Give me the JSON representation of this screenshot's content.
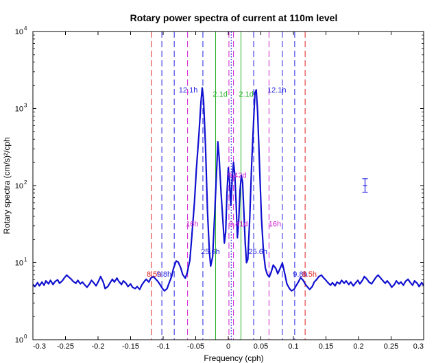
{
  "chart_data": {
    "type": "line",
    "title": "Rotary power spectra of current at 110m level",
    "xlabel": "Frequency (cph)",
    "ylabel": "Rotary spectra (cm/s)²/cph",
    "xlim": [
      -0.3,
      0.3
    ],
    "ylim": [
      1,
      10000
    ],
    "y_scale": "log",
    "grid": false,
    "x_ticks": [
      -0.3,
      -0.25,
      -0.2,
      -0.15,
      -0.1,
      -0.05,
      0,
      0.05,
      0.1,
      0.15,
      0.2,
      0.25,
      0.3
    ],
    "x_tick_labels": [
      "-0.3",
      "-0.25",
      "-0.2",
      "-0.15",
      "-0.1",
      "-0.05",
      "0",
      "0.05",
      "0.1",
      "0.15",
      "0.2",
      "0.25",
      "0.3"
    ],
    "y_ticks": [
      1,
      10,
      100,
      1000,
      10000
    ],
    "y_tick_labels": [
      {
        "base": "10",
        "exp": "0"
      },
      {
        "base": "10",
        "exp": "1"
      },
      {
        "base": "10",
        "exp": "2"
      },
      {
        "base": "10",
        "exp": "3"
      },
      {
        "base": "10",
        "exp": "4"
      }
    ],
    "series": [
      {
        "color": "#1010d0",
        "points": [
          [
            -0.3,
            5.2
          ],
          [
            -0.297,
            4.9
          ],
          [
            -0.293,
            5.5
          ],
          [
            -0.29,
            5.0
          ],
          [
            -0.286,
            5.6
          ],
          [
            -0.283,
            5.1
          ],
          [
            -0.28,
            5.8
          ],
          [
            -0.276,
            5.3
          ],
          [
            -0.273,
            5.9
          ],
          [
            -0.269,
            5.2
          ],
          [
            -0.266,
            5.7
          ],
          [
            -0.262,
            6.0
          ],
          [
            -0.259,
            5.4
          ],
          [
            -0.255,
            5.8
          ],
          [
            -0.252,
            6.3
          ],
          [
            -0.248,
            6.9
          ],
          [
            -0.245,
            6.5
          ],
          [
            -0.241,
            6.1
          ],
          [
            -0.238,
            5.7
          ],
          [
            -0.234,
            5.4
          ],
          [
            -0.231,
            5.9
          ],
          [
            -0.227,
            5.3
          ],
          [
            -0.224,
            5.6
          ],
          [
            -0.22,
            5.1
          ],
          [
            -0.217,
            4.8
          ],
          [
            -0.213,
            5.3
          ],
          [
            -0.21,
            5.9
          ],
          [
            -0.206,
            5.4
          ],
          [
            -0.203,
            5.0
          ],
          [
            -0.199,
            5.8
          ],
          [
            -0.196,
            6.6
          ],
          [
            -0.192,
            5.6
          ],
          [
            -0.189,
            4.6
          ],
          [
            -0.185,
            4.9
          ],
          [
            -0.182,
            5.4
          ],
          [
            -0.178,
            6.1
          ],
          [
            -0.175,
            5.6
          ],
          [
            -0.171,
            6.3
          ],
          [
            -0.168,
            5.7
          ],
          [
            -0.164,
            5.2
          ],
          [
            -0.161,
            5.8
          ],
          [
            -0.157,
            5.4
          ],
          [
            -0.154,
            4.9
          ],
          [
            -0.15,
            5.3
          ],
          [
            -0.147,
            4.8
          ],
          [
            -0.143,
            4.6
          ],
          [
            -0.14,
            4.9
          ],
          [
            -0.136,
            4.5
          ],
          [
            -0.133,
            5.1
          ],
          [
            -0.129,
            5.7
          ],
          [
            -0.126,
            6.1
          ],
          [
            -0.122,
            5.6
          ],
          [
            -0.119,
            6.3
          ],
          [
            -0.115,
            6.6
          ],
          [
            -0.112,
            6.2
          ],
          [
            -0.108,
            5.7
          ],
          [
            -0.105,
            5.2
          ],
          [
            -0.101,
            4.6
          ],
          [
            -0.098,
            4.3
          ],
          [
            -0.094,
            4.6
          ],
          [
            -0.091,
            5.4
          ],
          [
            -0.087,
            6.6
          ],
          [
            -0.084,
            8.5
          ],
          [
            -0.08,
            10.5
          ],
          [
            -0.077,
            10.2
          ],
          [
            -0.073,
            8.6
          ],
          [
            -0.07,
            7.0
          ],
          [
            -0.066,
            6.3
          ],
          [
            -0.063,
            7.4
          ],
          [
            -0.059,
            10.8
          ],
          [
            -0.056,
            22.0
          ],
          [
            -0.052,
            60.0
          ],
          [
            -0.049,
            160.0
          ],
          [
            -0.045,
            480.0
          ],
          [
            -0.042,
            1200.0
          ],
          [
            -0.04,
            1850.0
          ],
          [
            -0.038,
            1300.0
          ],
          [
            -0.035,
            320.0
          ],
          [
            -0.032,
            48.0
          ],
          [
            -0.029,
            14.0
          ],
          [
            -0.027,
            9.0
          ],
          [
            -0.024,
            12.0
          ],
          [
            -0.021,
            40.0
          ],
          [
            -0.018,
            150.0
          ],
          [
            -0.016,
            370.0
          ],
          [
            -0.014,
            230.0
          ],
          [
            -0.011,
            80.0
          ],
          [
            -0.008,
            32.0
          ],
          [
            -0.006,
            18.0
          ],
          [
            -0.004,
            25.0
          ],
          [
            -0.002,
            80.0
          ],
          [
            0.0,
            170.0
          ],
          [
            0.002,
            110.0
          ],
          [
            0.004,
            55.0
          ],
          [
            0.006,
            120.0
          ],
          [
            0.008,
            200.0
          ],
          [
            0.01,
            140.0
          ],
          [
            0.012,
            60.0
          ],
          [
            0.014,
            21.0
          ],
          [
            0.016,
            35.0
          ],
          [
            0.018,
            85.0
          ],
          [
            0.02,
            135.0
          ],
          [
            0.022,
            110.0
          ],
          [
            0.024,
            45.0
          ],
          [
            0.026,
            18.0
          ],
          [
            0.028,
            10.0
          ],
          [
            0.03,
            11.0
          ],
          [
            0.033,
            38.0
          ],
          [
            0.036,
            200.0
          ],
          [
            0.039,
            700.0
          ],
          [
            0.041,
            1600.0
          ],
          [
            0.043,
            1750.0
          ],
          [
            0.045,
            900.0
          ],
          [
            0.048,
            180.0
          ],
          [
            0.051,
            38.0
          ],
          [
            0.054,
            14.0
          ],
          [
            0.057,
            8.5
          ],
          [
            0.06,
            7.0
          ],
          [
            0.063,
            6.5
          ],
          [
            0.066,
            7.6
          ],
          [
            0.069,
            9.3
          ],
          [
            0.073,
            8.4
          ],
          [
            0.076,
            7.2
          ],
          [
            0.08,
            8.6
          ],
          [
            0.083,
            9.9
          ],
          [
            0.087,
            7.0
          ],
          [
            0.09,
            5.3
          ],
          [
            0.094,
            4.6
          ],
          [
            0.097,
            4.3
          ],
          [
            0.101,
            4.5
          ],
          [
            0.104,
            5.0
          ],
          [
            0.108,
            5.7
          ],
          [
            0.111,
            6.4
          ],
          [
            0.115,
            5.9
          ],
          [
            0.118,
            5.3
          ],
          [
            0.122,
            4.8
          ],
          [
            0.125,
            4.5
          ],
          [
            0.129,
            4.9
          ],
          [
            0.132,
            5.6
          ],
          [
            0.136,
            6.1
          ],
          [
            0.139,
            6.6
          ],
          [
            0.143,
            6.9
          ],
          [
            0.146,
            6.4
          ],
          [
            0.15,
            5.9
          ],
          [
            0.153,
            5.5
          ],
          [
            0.157,
            5.1
          ],
          [
            0.16,
            5.5
          ],
          [
            0.164,
            5.0
          ],
          [
            0.167,
            5.6
          ],
          [
            0.171,
            5.3
          ],
          [
            0.174,
            5.9
          ],
          [
            0.178,
            5.4
          ],
          [
            0.181,
            5.8
          ],
          [
            0.185,
            5.2
          ],
          [
            0.188,
            5.6
          ],
          [
            0.192,
            5.0
          ],
          [
            0.195,
            5.4
          ],
          [
            0.199,
            5.9
          ],
          [
            0.202,
            5.3
          ],
          [
            0.206,
            5.9
          ],
          [
            0.209,
            6.6
          ],
          [
            0.213,
            6.1
          ],
          [
            0.216,
            5.6
          ],
          [
            0.22,
            5.3
          ],
          [
            0.223,
            5.8
          ],
          [
            0.227,
            6.5
          ],
          [
            0.23,
            6.9
          ],
          [
            0.234,
            6.3
          ],
          [
            0.237,
            5.9
          ],
          [
            0.241,
            5.4
          ],
          [
            0.244,
            5.8
          ],
          [
            0.248,
            5.3
          ],
          [
            0.251,
            4.8
          ],
          [
            0.255,
            5.2
          ],
          [
            0.258,
            5.8
          ],
          [
            0.262,
            5.3
          ],
          [
            0.265,
            5.6
          ],
          [
            0.269,
            5.1
          ],
          [
            0.272,
            5.7
          ],
          [
            0.276,
            6.1
          ],
          [
            0.279,
            5.6
          ],
          [
            0.283,
            5.1
          ],
          [
            0.286,
            5.8
          ],
          [
            0.29,
            5.4
          ],
          [
            0.293,
            4.9
          ],
          [
            0.297,
            5.5
          ],
          [
            0.3,
            5.1
          ]
        ]
      }
    ],
    "reference_lines": [
      {
        "x": -0.118,
        "color": "#e02020",
        "style": "dashed"
      },
      {
        "x": 0.118,
        "color": "#e02020",
        "style": "dashed"
      },
      {
        "x": -0.102,
        "color": "#2020e0",
        "style": "dashed"
      },
      {
        "x": 0.102,
        "color": "#2020e0",
        "style": "dashed"
      },
      {
        "x": -0.083,
        "color": "#2020e0",
        "style": "dashed"
      },
      {
        "x": 0.083,
        "color": "#2020e0",
        "style": "dashed"
      },
      {
        "x": -0.0625,
        "color": "#d020d0",
        "style": "dashed"
      },
      {
        "x": 0.0625,
        "color": "#d020d0",
        "style": "dashed"
      },
      {
        "x": -0.039,
        "color": "#2020e0",
        "style": "dashed"
      },
      {
        "x": 0.039,
        "color": "#2020e0",
        "style": "dashed"
      },
      {
        "x": -0.0195,
        "color": "#20b020",
        "style": "solid"
      },
      {
        "x": 0.0195,
        "color": "#20b020",
        "style": "solid"
      },
      {
        "x": 0.001,
        "color": "#d020d0",
        "style": "dashed"
      },
      {
        "x": 0.0045,
        "color": "#2020e0",
        "style": "dotted"
      },
      {
        "x": 0.008,
        "color": "#d020d0",
        "style": "dashed"
      }
    ],
    "annotations": [
      {
        "text": "12.1h",
        "x": -0.0615,
        "y": 1750,
        "color": "#2020e0"
      },
      {
        "text": "12.1h",
        "x": 0.0745,
        "y": 1750,
        "color": "#2020e0"
      },
      {
        "text": "2.1d",
        "x": -0.0125,
        "y": 1550,
        "color": "#20b020"
      },
      {
        "text": "2.1d",
        "x": 0.0275,
        "y": 1550,
        "color": "#20b020"
      },
      {
        "text": "9.42d",
        "x": 0.0135,
        "y": 138,
        "color": "#d020d0"
      },
      {
        "text": "16h",
        "x": -0.0555,
        "y": 32,
        "color": "#d020d0"
      },
      {
        "text": "16h",
        "x": 0.0715,
        "y": 32,
        "color": "#d020d0"
      },
      {
        "text": "9.41d",
        "x": 0.0155,
        "y": 32,
        "color": "#d020d0"
      },
      {
        "text": "25.6h",
        "x": -0.0275,
        "y": 14,
        "color": "#2020e0"
      },
      {
        "text": "25.6h",
        "x": 0.0455,
        "y": 14,
        "color": "#2020e0"
      },
      {
        "text": "8.5h",
        "x": -0.114,
        "y": 7.1,
        "color": "#e02020"
      },
      {
        "text": "9.8h",
        "x": -0.0985,
        "y": 7.1,
        "color": "#2020e0"
      },
      {
        "text": "9.8h",
        "x": 0.1105,
        "y": 7.1,
        "color": "#2020e0"
      },
      {
        "text": "8.5h",
        "x": 0.1245,
        "y": 7.1,
        "color": "#e02020"
      }
    ],
    "error_bar": {
      "x": 0.21,
      "y_low": 82,
      "y_center": 100,
      "y_high": 123,
      "color": "#2020e0"
    }
  }
}
